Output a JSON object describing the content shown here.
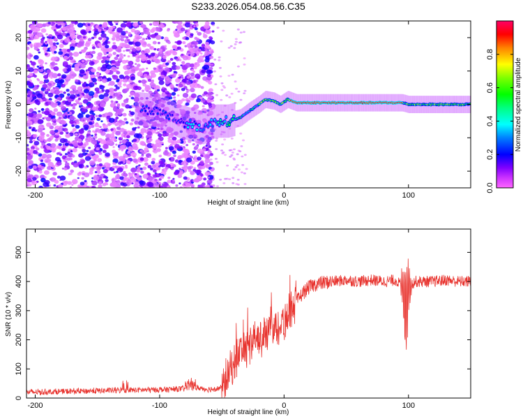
{
  "title": "S233.2026.054.08.56.C35",
  "chart_data": [
    {
      "type": "heatmap",
      "name": "spectrogram",
      "xlabel": "Height of straight line (km)",
      "ylabel": "Frequency (Hz)",
      "xlim": [
        -207,
        150
      ],
      "ylim": [
        -25,
        25
      ],
      "xticks": [
        -200,
        -100,
        0,
        100
      ],
      "yticks": [
        -20,
        -10,
        0,
        10,
        20
      ],
      "colorbar": {
        "label": "Normalized spectral amplitude",
        "range": [
          0.0,
          1.0
        ],
        "ticks": [
          0.0,
          0.2,
          0.4,
          0.6,
          0.8
        ]
      },
      "description_of_signal": [
        {
          "x": -200,
          "freq_center": 0
        },
        {
          "x": -150,
          "freq_center": 0
        },
        {
          "x": -100,
          "freq_center": -2
        },
        {
          "x": -85,
          "freq_center": -5
        },
        {
          "x": -65,
          "freq_center": -7
        },
        {
          "x": -55,
          "freq_center": -5
        },
        {
          "x": -45,
          "freq_center": -5
        },
        {
          "x": -35,
          "freq_center": -4
        },
        {
          "x": -28,
          "freq_center": -2
        },
        {
          "x": -20,
          "freq_center": 0
        },
        {
          "x": -15,
          "freq_center": 1.5
        },
        {
          "x": -8,
          "freq_center": 1
        },
        {
          "x": -3,
          "freq_center": 0
        },
        {
          "x": 3,
          "freq_center": 1.5
        },
        {
          "x": 10,
          "freq_center": 0.5
        },
        {
          "x": 95,
          "freq_center": 0.5
        },
        {
          "x": 100,
          "freq_center": 0
        },
        {
          "x": 150,
          "freq_center": 0
        }
      ]
    },
    {
      "type": "line",
      "name": "snr",
      "color": "#e8332e",
      "xlabel": "Height of straight line (km)",
      "ylabel": "SNR (10 * v/v)",
      "xlim": [
        -207,
        150
      ],
      "ylim": [
        0,
        580
      ],
      "xticks": [
        -200,
        -100,
        0,
        100
      ],
      "yticks": [
        0,
        100,
        200,
        300,
        400,
        500
      ],
      "x": [
        -207,
        -180,
        -150,
        -130,
        -110,
        -90,
        -80,
        -70,
        -60,
        -50,
        -45,
        -40,
        -35,
        -30,
        -25,
        -20,
        -15,
        -10,
        -5,
        0,
        5,
        10,
        15,
        20,
        25,
        30,
        40,
        50,
        60,
        70,
        80,
        90,
        95,
        98,
        100,
        105,
        110,
        120,
        130,
        140,
        150
      ],
      "y": [
        20,
        22,
        25,
        27,
        28,
        30,
        32,
        35,
        30,
        35,
        80,
        120,
        160,
        170,
        190,
        200,
        230,
        240,
        250,
        260,
        300,
        330,
        360,
        380,
        390,
        395,
        400,
        405,
        400,
        405,
        400,
        405,
        380,
        300,
        380,
        400,
        400,
        400,
        405,
        400,
        400
      ]
    }
  ]
}
